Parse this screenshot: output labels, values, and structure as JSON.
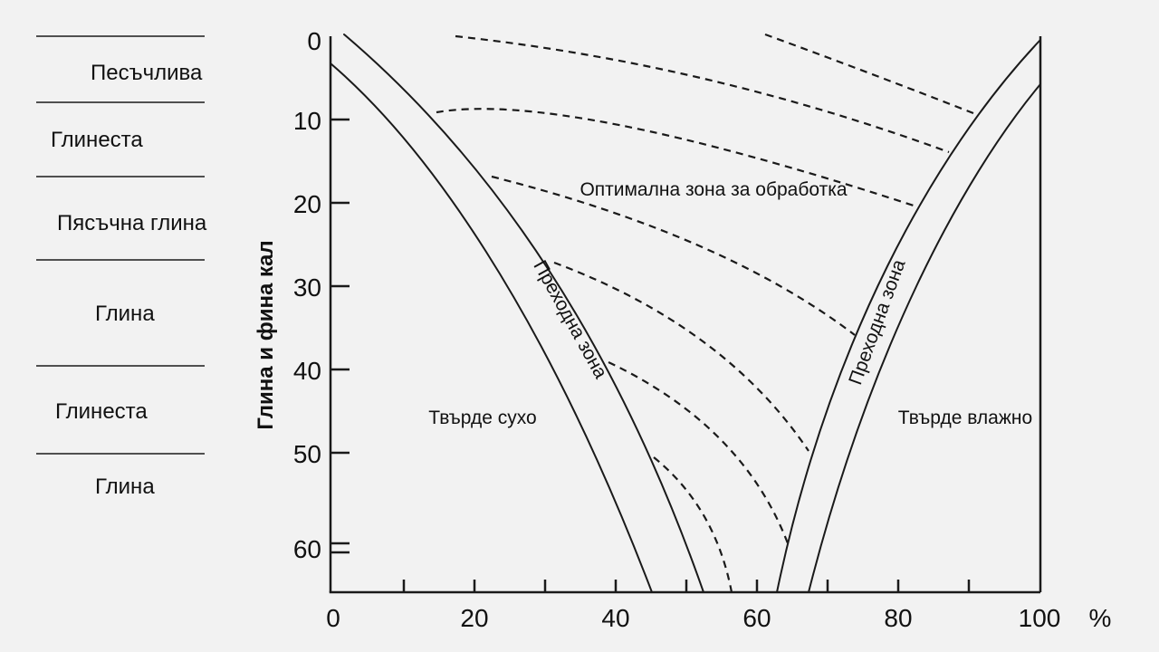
{
  "soil_classes": [
    {
      "label": "Песъчлива"
    },
    {
      "label": "Глинеста"
    },
    {
      "label": "Пясъчна глина"
    },
    {
      "label": "Глина"
    },
    {
      "label": "Глинеста"
    },
    {
      "label": "Глина"
    }
  ],
  "axes": {
    "y_title": "Глина и фина кал",
    "y_ticks": [
      "0",
      "10",
      "20",
      "30",
      "40",
      "50",
      "60"
    ],
    "x_ticks": [
      "0",
      "20",
      "40",
      "60",
      "80",
      "100"
    ],
    "x_unit": "%",
    "x_range": [
      0,
      100
    ],
    "y_range": [
      0,
      66
    ]
  },
  "zones": {
    "optimal": "Оптимална зона за обработка",
    "too_dry": "Твърде сухо",
    "too_wet": "Твърде влажно",
    "transition_left": "Преходна зона",
    "transition_right": "Преходна зона"
  },
  "colors": {
    "background": "#f2f2f2",
    "ink": "#1a1a1a"
  }
}
